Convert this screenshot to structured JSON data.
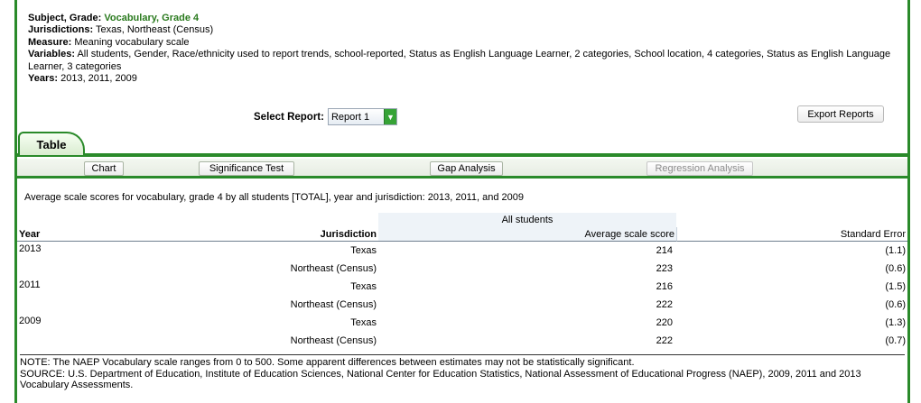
{
  "info": {
    "subject_label": "Subject, Grade:",
    "subject_value": "Vocabulary, Grade 4",
    "jurisdictions_label": "Jurisdictions:",
    "jurisdictions_value": "Texas, Northeast (Census)",
    "measure_label": "Measure:",
    "measure_value": "Meaning vocabulary scale",
    "variables_label": "Variables:",
    "variables_value": "All students, Gender, Race/ethnicity used to report trends, school-reported, Status as English Language Learner, 2 categories, School location, 4 categories, Status as English Language Learner, 3 categories",
    "years_label": "Years:",
    "years_value": "2013, 2011, 2009"
  },
  "select_report": {
    "label": "Select Report:",
    "value": "Report 1"
  },
  "export_label": "Export Reports",
  "tab_label": "Table",
  "sub_toolbar": {
    "chart": "Chart",
    "significance": "Significance Test",
    "gap": "Gap Analysis",
    "regression": "Regression Analysis"
  },
  "caption": "Average scale scores for vocabulary, grade 4 by all students [TOTAL], year and jurisdiction: 2013, 2011, and 2009",
  "table": {
    "group_header": "All students",
    "col_year": "Year",
    "col_jurisdiction": "Jurisdiction",
    "col_score": "Average scale score",
    "col_se": "Standard Error",
    "rows": [
      {
        "year": "2013",
        "jurisdiction": "Texas",
        "score": "214",
        "se": "(1.1)"
      },
      {
        "year": "",
        "jurisdiction": "Northeast (Census)",
        "score": "223",
        "se": "(0.6)"
      },
      {
        "year": "2011",
        "jurisdiction": "Texas",
        "score": "216",
        "se": "(1.5)"
      },
      {
        "year": "",
        "jurisdiction": "Northeast (Census)",
        "score": "222",
        "se": "(0.6)"
      },
      {
        "year": "2009",
        "jurisdiction": "Texas",
        "score": "220",
        "se": "(1.3)"
      },
      {
        "year": "",
        "jurisdiction": "Northeast (Census)",
        "score": "222",
        "se": "(0.7)"
      }
    ]
  },
  "note": "NOTE: The NAEP Vocabulary scale ranges from 0 to 500. Some apparent differences between estimates may not be statistically significant.",
  "source": "SOURCE: U.S. Department of Education, Institute of Education Sciences, National Center for Education Statistics, National Assessment of Educational Progress (NAEP), 2009, 2011 and 2013 Vocabulary Assessments."
}
